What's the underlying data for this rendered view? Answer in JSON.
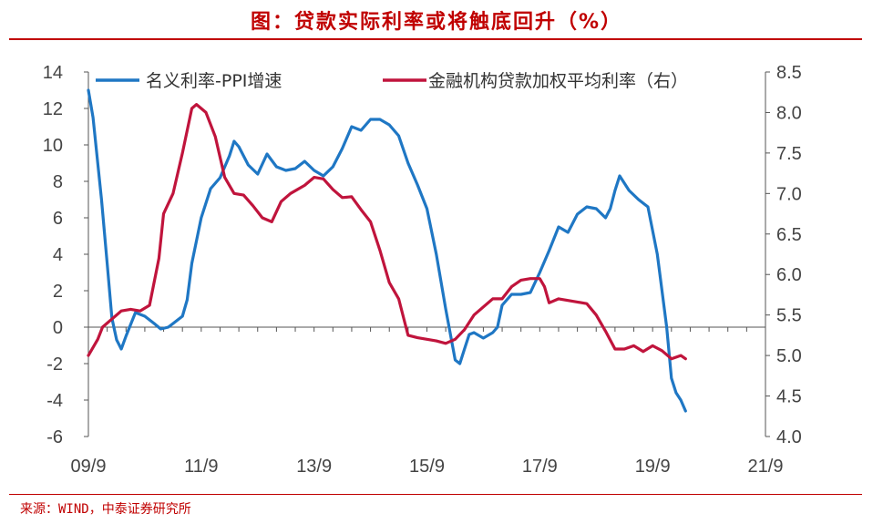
{
  "title": "图：贷款实际利率或将触底回升（%）",
  "source": "来源：WIND，中泰证券研究所",
  "colors": {
    "accent": "#c00000",
    "series1": "#1f77c4",
    "series2": "#c0143c",
    "axis": "#555555"
  },
  "chart_data": {
    "type": "line",
    "grid": false,
    "legend": "top",
    "x_tick_labels": [
      "09/9",
      "11/9",
      "13/9",
      "15/9",
      "17/9",
      "19/9",
      "21/9"
    ],
    "x_tick_positions": [
      2009.667,
      2011.667,
      2013.667,
      2015.667,
      2017.667,
      2019.667,
      2021.667
    ],
    "xlim": [
      2009.667,
      2021.667
    ],
    "left_axis": {
      "ylim": [
        -6,
        14
      ],
      "ticks": [
        "14",
        "12",
        "10",
        "8",
        "6",
        "4",
        "2",
        "0",
        "-2",
        "-4",
        "-6"
      ]
    },
    "right_axis": {
      "ylim": [
        4.0,
        8.5
      ],
      "ticks": [
        "8.5",
        "8.0",
        "7.5",
        "7.0",
        "6.5",
        "6.0",
        "5.5",
        "5.0",
        "4.5",
        "4.0"
      ]
    },
    "series": [
      {
        "name": "名义利率-PPI增速",
        "axis": "left",
        "points": [
          [
            2009.667,
            13.0
          ],
          [
            2009.75,
            11.5
          ],
          [
            2009.9,
            7.0
          ],
          [
            2010.0,
            3.5
          ],
          [
            2010.083,
            0.5
          ],
          [
            2010.167,
            -0.7
          ],
          [
            2010.25,
            -1.2
          ],
          [
            2010.333,
            -0.5
          ],
          [
            2010.5,
            0.8
          ],
          [
            2010.667,
            0.6
          ],
          [
            2010.833,
            0.2
          ],
          [
            2010.95,
            -0.1
          ],
          [
            2011.083,
            0.0
          ],
          [
            2011.167,
            0.2
          ],
          [
            2011.333,
            0.6
          ],
          [
            2011.417,
            1.5
          ],
          [
            2011.5,
            3.5
          ],
          [
            2011.667,
            6.0
          ],
          [
            2011.833,
            7.6
          ],
          [
            2012.0,
            8.2
          ],
          [
            2012.167,
            9.4
          ],
          [
            2012.25,
            10.2
          ],
          [
            2012.333,
            9.9
          ],
          [
            2012.5,
            8.9
          ],
          [
            2012.667,
            8.4
          ],
          [
            2012.833,
            9.5
          ],
          [
            2013.0,
            8.8
          ],
          [
            2013.167,
            8.6
          ],
          [
            2013.333,
            8.7
          ],
          [
            2013.5,
            9.1
          ],
          [
            2013.667,
            8.6
          ],
          [
            2013.833,
            8.3
          ],
          [
            2014.0,
            8.8
          ],
          [
            2014.167,
            9.8
          ],
          [
            2014.333,
            11.0
          ],
          [
            2014.5,
            10.8
          ],
          [
            2014.667,
            11.4
          ],
          [
            2014.833,
            11.4
          ],
          [
            2015.0,
            11.1
          ],
          [
            2015.167,
            10.5
          ],
          [
            2015.333,
            9.0
          ],
          [
            2015.5,
            7.8
          ],
          [
            2015.667,
            6.5
          ],
          [
            2015.833,
            4.0
          ],
          [
            2016.0,
            1.0
          ],
          [
            2016.167,
            -1.8
          ],
          [
            2016.25,
            -2.0
          ],
          [
            2016.333,
            -1.2
          ],
          [
            2016.417,
            -0.4
          ],
          [
            2016.5,
            -0.3
          ],
          [
            2016.667,
            -0.6
          ],
          [
            2016.833,
            -0.3
          ],
          [
            2016.917,
            0.0
          ],
          [
            2017.0,
            1.2
          ],
          [
            2017.167,
            1.8
          ],
          [
            2017.333,
            1.8
          ],
          [
            2017.5,
            1.9
          ],
          [
            2017.667,
            3.0
          ],
          [
            2017.833,
            4.2
          ],
          [
            2018.0,
            5.5
          ],
          [
            2018.167,
            5.2
          ],
          [
            2018.333,
            6.2
          ],
          [
            2018.5,
            6.6
          ],
          [
            2018.667,
            6.5
          ],
          [
            2018.833,
            6.0
          ],
          [
            2018.917,
            6.5
          ],
          [
            2019.0,
            7.5
          ],
          [
            2019.083,
            8.3
          ],
          [
            2019.25,
            7.5
          ],
          [
            2019.417,
            7.0
          ],
          [
            2019.583,
            6.6
          ],
          [
            2019.75,
            4.0
          ],
          [
            2019.917,
            0.0
          ],
          [
            2020.0,
            -2.8
          ],
          [
            2020.083,
            -3.6
          ],
          [
            2020.167,
            -4.0
          ],
          [
            2020.25,
            -4.6
          ]
        ]
      },
      {
        "name": "金融机构贷款加权平均利率（右）",
        "axis": "right",
        "points": [
          [
            2009.667,
            5.0
          ],
          [
            2009.833,
            5.2
          ],
          [
            2009.917,
            5.35
          ],
          [
            2010.083,
            5.45
          ],
          [
            2010.25,
            5.55
          ],
          [
            2010.417,
            5.57
          ],
          [
            2010.583,
            5.55
          ],
          [
            2010.75,
            5.62
          ],
          [
            2010.917,
            6.2
          ],
          [
            2011.0,
            6.75
          ],
          [
            2011.167,
            7.0
          ],
          [
            2011.333,
            7.5
          ],
          [
            2011.5,
            8.05
          ],
          [
            2011.583,
            8.1
          ],
          [
            2011.75,
            8.0
          ],
          [
            2011.917,
            7.7
          ],
          [
            2012.083,
            7.2
          ],
          [
            2012.25,
            7.0
          ],
          [
            2012.417,
            6.98
          ],
          [
            2012.583,
            6.85
          ],
          [
            2012.75,
            6.7
          ],
          [
            2012.917,
            6.65
          ],
          [
            2013.083,
            6.9
          ],
          [
            2013.25,
            7.0
          ],
          [
            2013.5,
            7.1
          ],
          [
            2013.667,
            7.2
          ],
          [
            2013.833,
            7.18
          ],
          [
            2014.0,
            7.05
          ],
          [
            2014.167,
            6.95
          ],
          [
            2014.333,
            6.96
          ],
          [
            2014.5,
            6.8
          ],
          [
            2014.667,
            6.65
          ],
          [
            2014.833,
            6.3
          ],
          [
            2015.0,
            5.9
          ],
          [
            2015.167,
            5.7
          ],
          [
            2015.333,
            5.25
          ],
          [
            2015.5,
            5.22
          ],
          [
            2015.667,
            5.2
          ],
          [
            2015.833,
            5.18
          ],
          [
            2016.0,
            5.15
          ],
          [
            2016.167,
            5.2
          ],
          [
            2016.333,
            5.32
          ],
          [
            2016.5,
            5.5
          ],
          [
            2016.667,
            5.6
          ],
          [
            2016.833,
            5.7
          ],
          [
            2017.0,
            5.7
          ],
          [
            2017.167,
            5.85
          ],
          [
            2017.333,
            5.93
          ],
          [
            2017.5,
            5.95
          ],
          [
            2017.667,
            5.95
          ],
          [
            2017.75,
            5.85
          ],
          [
            2017.833,
            5.65
          ],
          [
            2018.0,
            5.7
          ],
          [
            2018.167,
            5.68
          ],
          [
            2018.333,
            5.66
          ],
          [
            2018.5,
            5.64
          ],
          [
            2018.667,
            5.5
          ],
          [
            2018.833,
            5.3
          ],
          [
            2019.0,
            5.08
          ],
          [
            2019.167,
            5.08
          ],
          [
            2019.333,
            5.12
          ],
          [
            2019.5,
            5.05
          ],
          [
            2019.667,
            5.12
          ],
          [
            2019.833,
            5.06
          ],
          [
            2020.0,
            4.96
          ],
          [
            2020.167,
            5.0
          ],
          [
            2020.25,
            4.96
          ]
        ]
      }
    ]
  }
}
